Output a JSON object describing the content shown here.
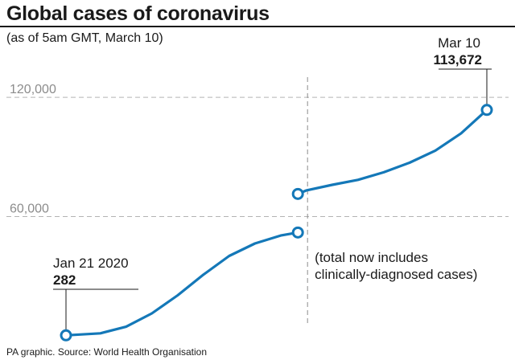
{
  "title": "Global cases of coronavirus",
  "subtitle": "(as of 5am GMT, March 10)",
  "source": "PA graphic. Source: World Health Organisation",
  "colors": {
    "line": "#1478b8",
    "text": "#1a1a1a",
    "grid": "#b3b3b3"
  },
  "annotations": {
    "start": {
      "date": "Jan 21 2020",
      "value": "282"
    },
    "end": {
      "date": "Mar 10",
      "value": "113,672"
    },
    "note_line1": "(total now includes",
    "note_line2": "clinically-diagnosed cases)"
  },
  "chart_data": {
    "type": "line",
    "title": "Global cases of coronavirus",
    "subtitle": "(as of 5am GMT, March 10)",
    "xlabel": "",
    "ylabel": "",
    "x_range": [
      "2020-01-21",
      "2020-03-10"
    ],
    "ylim": [
      0,
      135000
    ],
    "yticks": [
      60000,
      120000
    ],
    "ytick_labels": [
      "60,000",
      "120,000"
    ],
    "grid": "horizontal dashed at ticks",
    "discontinuity": {
      "date": "2020-02-17",
      "label": "(total now includes clinically-diagnosed cases)"
    },
    "series": [
      {
        "segment": "before",
        "x": [
          "2020-01-21",
          "2020-01-25",
          "2020-01-28",
          "2020-01-31",
          "2020-02-03",
          "2020-02-06",
          "2020-02-09",
          "2020-02-12",
          "2020-02-15",
          "2020-02-17"
        ],
        "y": [
          282,
          1300,
          4600,
          11300,
          20400,
          30800,
          40200,
          46500,
          50500,
          52000
        ]
      },
      {
        "segment": "after",
        "x": [
          "2020-02-17",
          "2020-02-18",
          "2020-02-21",
          "2020-02-24",
          "2020-02-27",
          "2020-03-01",
          "2020-03-04",
          "2020-03-07",
          "2020-03-10"
        ],
        "y": [
          71400,
          73200,
          76000,
          78500,
          82300,
          87100,
          93200,
          101900,
          113672
        ]
      }
    ]
  }
}
